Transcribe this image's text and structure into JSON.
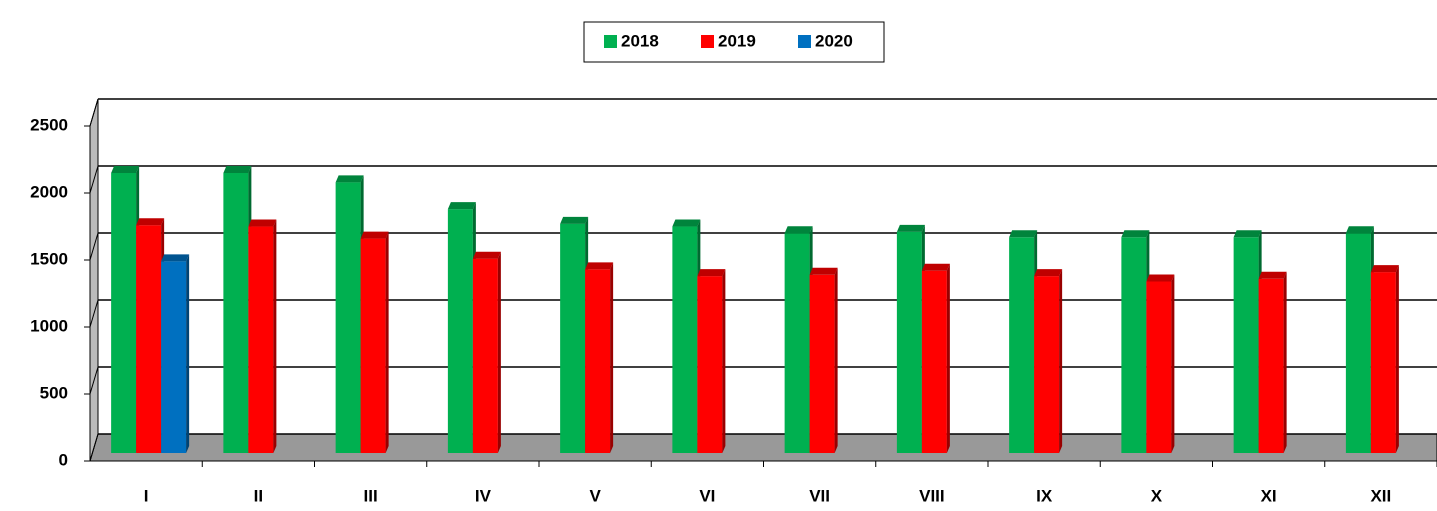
{
  "chart_data": {
    "type": "bar3d",
    "categories": [
      "I",
      "II",
      "III",
      "IV",
      "V",
      "VI",
      "VII",
      "VIII",
      "IX",
      "X",
      "XI",
      "XII"
    ],
    "series": [
      {
        "name": "2018",
        "color": "#00b050",
        "values": [
          2090,
          2090,
          2020,
          1820,
          1710,
          1690,
          1640,
          1650,
          1610,
          1610,
          1610,
          1640
        ]
      },
      {
        "name": "2019",
        "color": "#ff0000",
        "values": [
          1700,
          1690,
          1600,
          1450,
          1370,
          1320,
          1330,
          1360,
          1320,
          1280,
          1300,
          1350
        ]
      },
      {
        "name": "2020",
        "color": "#0070c0",
        "values": [
          1430,
          null,
          null,
          null,
          null,
          null,
          null,
          null,
          null,
          null,
          null,
          null
        ]
      }
    ],
    "ylim": [
      0,
      2500
    ],
    "yticks": [
      0,
      500,
      1000,
      1500,
      2000,
      2500
    ],
    "grid": true,
    "legend": "top"
  }
}
